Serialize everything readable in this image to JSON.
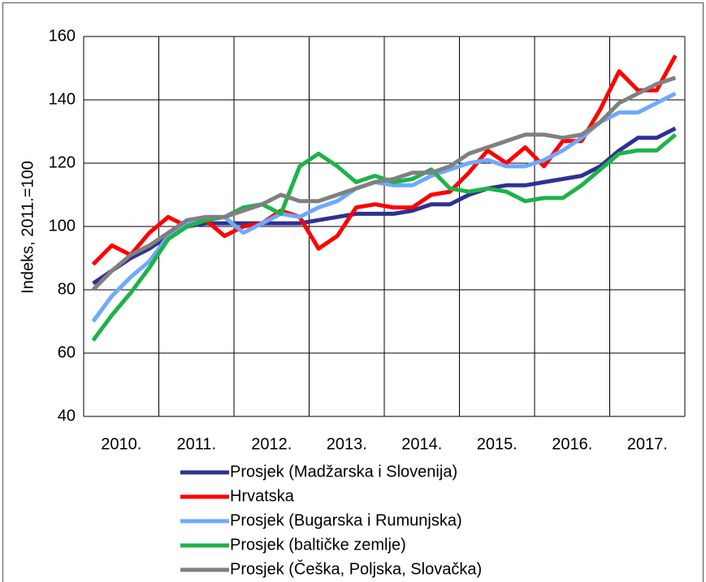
{
  "chart_data": {
    "type": "line",
    "y_label": "Indeks, 2011.=100",
    "x": [
      2010.125,
      2010.375,
      2010.625,
      2010.875,
      2011.125,
      2011.375,
      2011.625,
      2011.875,
      2012.125,
      2012.375,
      2012.625,
      2012.875,
      2013.125,
      2013.375,
      2013.625,
      2013.875,
      2014.125,
      2014.375,
      2014.625,
      2014.875,
      2015.125,
      2015.375,
      2015.625,
      2015.875,
      2016.125,
      2016.375,
      2016.625,
      2016.875,
      2017.125,
      2017.375,
      2017.625,
      2017.875
    ],
    "xlim": [
      2010,
      2018
    ],
    "xticks": [
      {
        "value": 2010.5,
        "label": "2010."
      },
      {
        "value": 2011.5,
        "label": "2011."
      },
      {
        "value": 2012.5,
        "label": "2012."
      },
      {
        "value": 2013.5,
        "label": "2013."
      },
      {
        "value": 2014.5,
        "label": "2014."
      },
      {
        "value": 2015.5,
        "label": "2015."
      },
      {
        "value": 2016.5,
        "label": "2016."
      },
      {
        "value": 2017.5,
        "label": "2017."
      }
    ],
    "ylim": [
      40,
      160
    ],
    "yticks": [
      40,
      60,
      80,
      100,
      120,
      140,
      160
    ],
    "grid": true,
    "legend": "bottom",
    "series": [
      {
        "name": "Prosjek (Madžarska i Slovenija)",
        "color": "#2e3192",
        "values": [
          82,
          86,
          90,
          93,
          97,
          100,
          101,
          101,
          101,
          101,
          101,
          101,
          102,
          103,
          104,
          104,
          104,
          105,
          107,
          107,
          110,
          112,
          113,
          113,
          114,
          115,
          116,
          119,
          124,
          128,
          128,
          131
        ]
      },
      {
        "name": "Hrvatska",
        "color": "#ff0000",
        "values": [
          88,
          94,
          91,
          98,
          103,
          100,
          102,
          97,
          100,
          101,
          105,
          103,
          93,
          97,
          106,
          107,
          106,
          106,
          110,
          111,
          117,
          124,
          120,
          125,
          119,
          127,
          127,
          137,
          149,
          143,
          143,
          154
        ]
      },
      {
        "name": "Prosjek (Bugarska i Rumunjska)",
        "color": "#6fa8ff",
        "values": [
          70,
          78,
          84,
          89,
          97,
          101,
          102,
          103,
          98,
          101,
          104,
          103,
          106,
          108,
          112,
          114,
          113,
          113,
          116,
          118,
          120,
          121,
          119,
          119,
          121,
          124,
          128,
          133,
          136,
          136,
          139,
          142
        ]
      },
      {
        "name": "Prosjek (baltičke zemlje)",
        "color": "#1db34a",
        "values": [
          64,
          72,
          79,
          87,
          96,
          100,
          102,
          103,
          106,
          107,
          104,
          119,
          123,
          119,
          114,
          116,
          114,
          115,
          118,
          112,
          111,
          112,
          111,
          108,
          109,
          109,
          113,
          118,
          123,
          124,
          124,
          129
        ]
      },
      {
        "name": "Prosjek (Češka, Poljska, Slovačka)",
        "color": "#808080",
        "values": [
          80,
          86,
          91,
          94,
          98,
          102,
          103,
          103,
          105,
          107,
          110,
          108,
          108,
          110,
          112,
          114,
          115,
          117,
          117,
          119,
          123,
          125,
          127,
          129,
          129,
          128,
          129,
          133,
          139,
          142,
          145,
          147
        ]
      }
    ]
  }
}
